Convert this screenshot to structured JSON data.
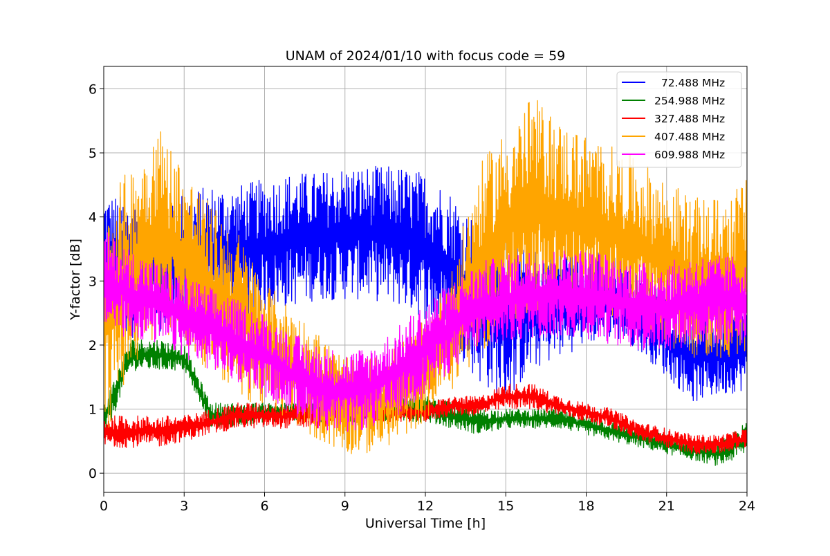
{
  "chart_data": {
    "type": "line",
    "title": "UNAM of 2024/01/10 with focus code = 59",
    "xlabel": "Universal Time [h]",
    "ylabel": "Y-factor [dB]",
    "xlim": [
      0,
      24
    ],
    "ylim": [
      -0.3,
      6.35
    ],
    "xticks": [
      0,
      3,
      6,
      9,
      12,
      15,
      18,
      21,
      24
    ],
    "yticks": [
      0,
      1,
      2,
      3,
      4,
      5,
      6
    ],
    "grid": true,
    "legend_position": "top-right",
    "series": [
      {
        "name": "  72.488 MHz",
        "color": "#0000ff",
        "x": [
          0,
          1,
          2,
          3,
          4,
          5,
          6,
          7,
          8,
          9,
          10,
          11,
          12,
          13,
          14,
          15,
          16,
          17,
          18,
          19,
          20,
          21,
          22,
          23,
          24
        ],
        "low": [
          2.3,
          2.1,
          2.2,
          2.3,
          2.4,
          2.4,
          2.5,
          2.6,
          2.7,
          2.7,
          2.7,
          2.6,
          2.4,
          2.0,
          1.4,
          1.1,
          1.6,
          1.8,
          2.0,
          2.1,
          1.9,
          1.5,
          1.1,
          1.2,
          1.3
        ],
        "high": [
          4.4,
          4.3,
          4.3,
          4.4,
          4.5,
          4.5,
          4.6,
          4.7,
          4.7,
          4.8,
          4.8,
          4.8,
          4.7,
          4.4,
          3.9,
          3.6,
          3.5,
          3.5,
          3.5,
          3.4,
          3.1,
          2.8,
          2.5,
          2.5,
          2.6
        ]
      },
      {
        "name": "254.988 MHz",
        "color": "#008000",
        "x": [
          0,
          1,
          2,
          3,
          4,
          5,
          6,
          7,
          8,
          9,
          10,
          11,
          12,
          13,
          14,
          15,
          16,
          17,
          18,
          19,
          20,
          21,
          22,
          23,
          24
        ],
        "low": [
          0.5,
          1.6,
          1.6,
          1.6,
          0.7,
          0.7,
          0.8,
          0.8,
          0.8,
          0.8,
          0.8,
          0.8,
          0.8,
          0.7,
          0.6,
          0.7,
          0.7,
          0.7,
          0.6,
          0.5,
          0.4,
          0.3,
          0.2,
          0.1,
          0.3
        ],
        "high": [
          1.1,
          2.1,
          2.1,
          2.0,
          1.1,
          1.1,
          1.1,
          1.1,
          1.1,
          1.1,
          1.1,
          1.2,
          1.2,
          1.1,
          1.0,
          1.0,
          1.0,
          1.0,
          0.9,
          0.8,
          0.7,
          0.6,
          0.5,
          0.5,
          0.8
        ]
      },
      {
        "name": "327.488 MHz",
        "color": "#ff0000",
        "x": [
          0,
          1,
          2,
          3,
          4,
          5,
          6,
          7,
          8,
          9,
          10,
          11,
          12,
          13,
          14,
          15,
          16,
          17,
          18,
          19,
          20,
          21,
          22,
          23,
          24
        ],
        "low": [
          0.4,
          0.4,
          0.4,
          0.5,
          0.6,
          0.7,
          0.7,
          0.7,
          0.7,
          0.8,
          0.8,
          0.8,
          0.8,
          0.9,
          0.9,
          1.0,
          1.0,
          0.9,
          0.8,
          0.7,
          0.5,
          0.4,
          0.3,
          0.3,
          0.4
        ],
        "high": [
          0.9,
          0.9,
          0.9,
          0.9,
          1.0,
          1.1,
          1.1,
          1.1,
          1.1,
          1.1,
          1.1,
          1.1,
          1.1,
          1.2,
          1.2,
          1.4,
          1.4,
          1.2,
          1.1,
          1.0,
          0.8,
          0.7,
          0.6,
          0.6,
          0.7
        ]
      },
      {
        "name": "407.488 MHz",
        "color": "#ffa500",
        "x": [
          0,
          1,
          2,
          3,
          4,
          5,
          6,
          7,
          8,
          9,
          10,
          11,
          12,
          13,
          14,
          15,
          16,
          17,
          18,
          19,
          20,
          21,
          22,
          23,
          24
        ],
        "low": [
          0.5,
          1.6,
          2.2,
          2.0,
          1.5,
          1.2,
          1.0,
          0.8,
          0.5,
          0.3,
          0.3,
          0.5,
          0.8,
          1.3,
          1.8,
          2.3,
          2.5,
          2.6,
          2.5,
          2.4,
          2.2,
          2.0,
          1.8,
          1.8,
          1.8
        ],
        "high": [
          4.2,
          4.8,
          5.5,
          4.8,
          4.2,
          3.8,
          3.0,
          2.6,
          2.2,
          1.8,
          1.8,
          2.0,
          2.4,
          3.2,
          4.8,
          5.4,
          5.9,
          5.5,
          5.3,
          5.1,
          4.9,
          4.6,
          4.3,
          4.3,
          4.6
        ]
      },
      {
        "name": "609.988 MHz",
        "color": "#ff00ff",
        "x": [
          0,
          1,
          2,
          3,
          4,
          5,
          6,
          7,
          8,
          9,
          10,
          11,
          12,
          13,
          14,
          15,
          16,
          17,
          18,
          19,
          20,
          21,
          22,
          23,
          24
        ],
        "low": [
          2.2,
          2.1,
          2.0,
          1.8,
          1.6,
          1.4,
          1.2,
          0.9,
          0.7,
          0.6,
          0.7,
          0.9,
          1.2,
          1.6,
          1.9,
          2.0,
          2.1,
          2.1,
          2.1,
          2.0,
          1.9,
          1.9,
          2.0,
          2.0,
          2.0
        ],
        "high": [
          3.8,
          3.5,
          3.3,
          3.1,
          2.9,
          2.7,
          2.5,
          2.2,
          2.0,
          1.9,
          2.0,
          2.3,
          2.7,
          3.0,
          3.3,
          3.4,
          3.5,
          3.5,
          3.5,
          3.4,
          3.3,
          3.3,
          3.4,
          3.4,
          3.4
        ]
      }
    ]
  }
}
